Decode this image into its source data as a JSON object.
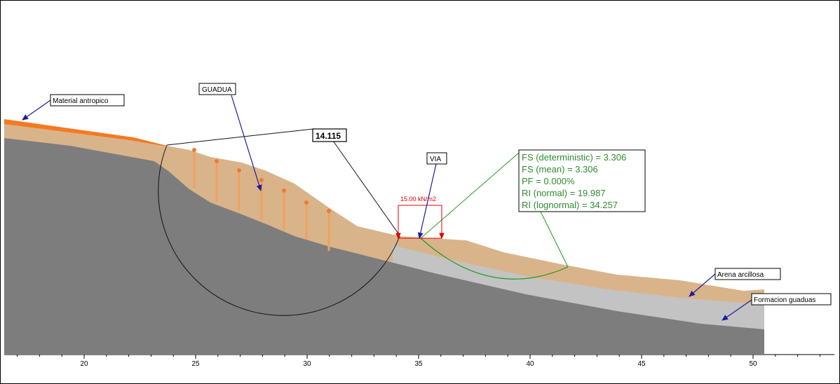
{
  "labels": {
    "material_antropico": "Material antropico",
    "guadua": "GUADUA",
    "critical_value": "14.115",
    "via": "VIA",
    "load": "15.00 kN/m2",
    "arena_arcillosa": "Arena arcillosa",
    "formacion_guaduas": "Formacion guaduas"
  },
  "results": [
    "FS (deterministic) = 3.306",
    "FS (mean) = 3.306",
    "PF = 0.000%",
    "RI (normal) = 19.987",
    "RI (lognormal) = 34.257"
  ],
  "axis": {
    "ticks": [
      "20",
      "25",
      "30",
      "35",
      "40",
      "45",
      "50"
    ]
  },
  "colors": {
    "bedrock": "#7d7d7d",
    "arena": "#d9b48a",
    "formacion": "#c3c3c3",
    "antropico": "#f47a20",
    "pile": "#f0a060",
    "result_text": "#2e8b2e",
    "load": "#e00000",
    "arrow": "#1c1c9c"
  }
}
